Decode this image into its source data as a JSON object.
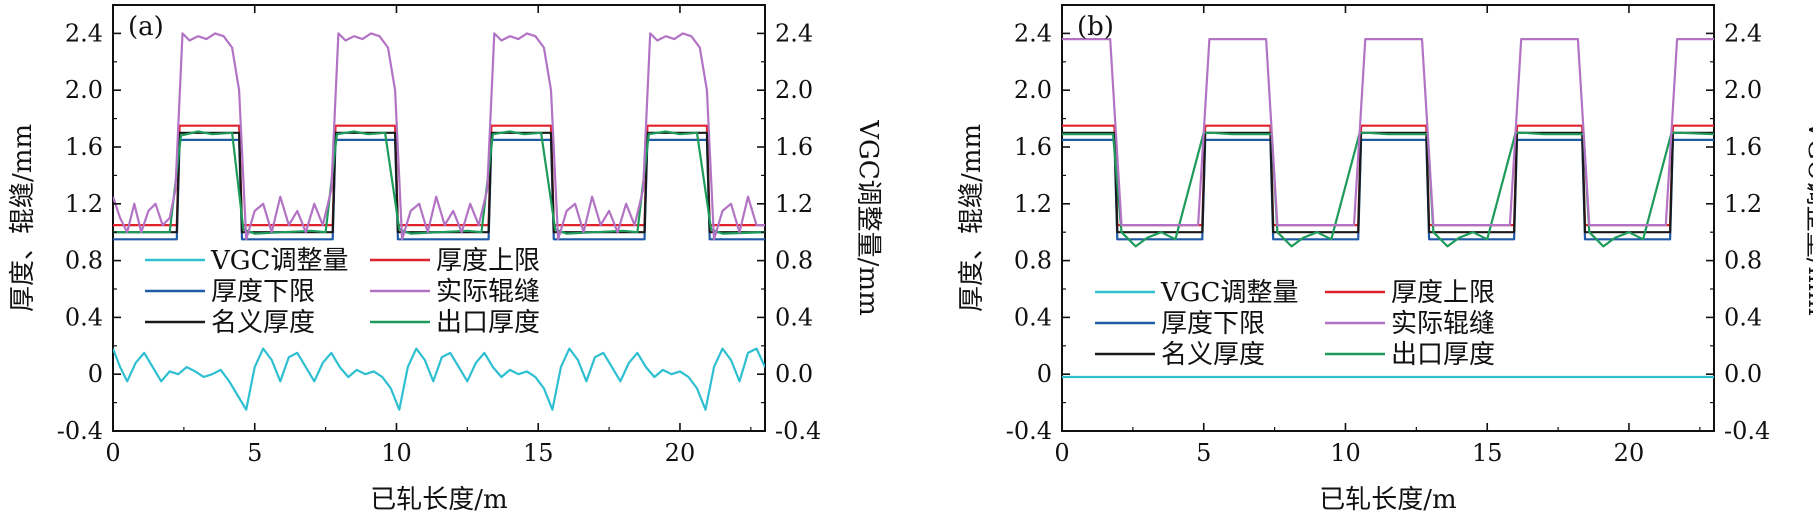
{
  "figure": {
    "series_names": [
      "VGC调整量",
      "厚度上限",
      "厚度下限",
      "实际辊缝",
      "名义厚度",
      "出口厚度"
    ],
    "series_colors": {
      "vgc": "#2ebfd1",
      "upper": "#e0212a",
      "lower": "#1f5aa6",
      "gap": "#b373c4",
      "nominal": "#1a1a1a",
      "exit": "#1e9a5a"
    }
  },
  "chart_data": [
    {
      "type": "line",
      "panel_label": "(a)",
      "xlabel": "已轧长度/m",
      "ylabel_left": "厚度、辊缝/mm",
      "ylabel_right": "VGC调整量/mm",
      "xlim": [
        0,
        23
      ],
      "ylim": [
        -0.4,
        2.6
      ],
      "x_ticks": [
        "0",
        "5",
        "10",
        "15",
        "20"
      ],
      "y_ticks_left": [
        "-0.4",
        "0",
        "0.4",
        "0.8",
        "1.2",
        "1.6",
        "2.0",
        "2.4"
      ],
      "y_ticks_right": [
        "-0.4",
        "0.0",
        "0.4",
        "0.8",
        "1.2",
        "1.6",
        "2.0",
        "2.4"
      ],
      "grid": false,
      "legend_position": "center-left",
      "series": [
        {
          "name": "厚度上限",
          "key": "upper",
          "x": [
            0,
            2.25,
            2.35,
            4.45,
            4.55,
            7.75,
            7.85,
            9.95,
            10.05,
            13.25,
            13.35,
            15.45,
            15.55,
            18.75,
            18.85,
            20.95,
            21.05,
            23
          ],
          "y": [
            1.05,
            1.05,
            1.75,
            1.75,
            1.05,
            1.05,
            1.75,
            1.75,
            1.05,
            1.05,
            1.75,
            1.75,
            1.05,
            1.05,
            1.75,
            1.75,
            1.05,
            1.05
          ]
        },
        {
          "name": "厚度下限",
          "key": "lower",
          "x": [
            0,
            2.25,
            2.35,
            4.45,
            4.55,
            7.75,
            7.85,
            9.95,
            10.05,
            13.25,
            13.35,
            15.45,
            15.55,
            18.75,
            18.85,
            20.95,
            21.05,
            23
          ],
          "y": [
            0.95,
            0.95,
            1.65,
            1.65,
            0.95,
            0.95,
            1.65,
            1.65,
            0.95,
            0.95,
            1.65,
            1.65,
            0.95,
            0.95,
            1.65,
            1.65,
            0.95,
            0.95
          ]
        },
        {
          "name": "名义厚度",
          "key": "nominal",
          "x": [
            0,
            2.25,
            2.35,
            4.45,
            4.55,
            7.75,
            7.85,
            9.95,
            10.05,
            13.25,
            13.35,
            15.45,
            15.55,
            18.75,
            18.85,
            20.95,
            21.05,
            23
          ],
          "y": [
            1.0,
            1.0,
            1.7,
            1.7,
            1.0,
            1.0,
            1.7,
            1.7,
            1.0,
            1.0,
            1.7,
            1.7,
            1.0,
            1.0,
            1.7,
            1.7,
            1.0,
            1.0
          ]
        },
        {
          "name": "出口厚度",
          "key": "exit",
          "x": [
            0,
            2.0,
            2.4,
            3.0,
            3.5,
            4.2,
            4.6,
            5.0,
            6.0,
            7.0,
            7.5,
            7.9,
            8.5,
            9.0,
            9.6,
            10.1,
            10.5,
            11.5,
            12.5,
            13.0,
            13.4,
            14.0,
            14.5,
            15.1,
            15.6,
            16.0,
            17.0,
            18.0,
            18.5,
            18.9,
            19.5,
            20.0,
            20.6,
            21.1,
            21.5,
            23
          ],
          "y": [
            1.0,
            1.0,
            1.68,
            1.71,
            1.69,
            1.7,
            1.02,
            0.99,
            1.0,
            1.01,
            1.0,
            1.69,
            1.71,
            1.69,
            1.7,
            1.02,
            0.99,
            1.0,
            1.01,
            1.0,
            1.69,
            1.71,
            1.69,
            1.7,
            1.02,
            0.99,
            1.0,
            1.01,
            1.0,
            1.69,
            1.71,
            1.69,
            1.7,
            1.02,
            0.99,
            1.0
          ]
        },
        {
          "name": "实际辊缝",
          "key": "gap",
          "x": [
            0,
            0.25,
            0.5,
            0.75,
            1.0,
            1.25,
            1.5,
            1.75,
            2.0,
            2.2,
            2.45,
            2.7,
            3.0,
            3.3,
            3.6,
            3.9,
            4.2,
            4.45,
            4.7,
            5.0,
            5.3,
            5.6,
            5.9,
            6.2,
            6.5,
            6.8,
            7.1,
            7.4,
            7.7,
            7.95,
            8.2,
            8.5,
            8.8,
            9.1,
            9.4,
            9.7,
            9.95,
            10.2,
            10.5,
            10.8,
            11.1,
            11.4,
            11.7,
            12.0,
            12.3,
            12.6,
            12.9,
            13.2,
            13.45,
            13.7,
            14.0,
            14.3,
            14.6,
            14.9,
            15.2,
            15.45,
            15.7,
            16.0,
            16.3,
            16.6,
            16.9,
            17.2,
            17.5,
            17.8,
            18.1,
            18.4,
            18.7,
            18.95,
            19.2,
            19.5,
            19.8,
            20.1,
            20.4,
            20.7,
            20.95,
            21.2,
            21.5,
            21.8,
            22.1,
            22.4,
            22.7,
            23
          ],
          "y": [
            1.25,
            1.1,
            1.0,
            1.2,
            1.0,
            1.15,
            1.2,
            1.05,
            1.1,
            1.3,
            2.4,
            2.35,
            2.38,
            2.36,
            2.4,
            2.38,
            2.3,
            2.0,
            0.95,
            1.15,
            1.2,
            1.0,
            1.25,
            1.05,
            1.15,
            1.0,
            1.2,
            1.05,
            1.3,
            2.4,
            2.35,
            2.38,
            2.36,
            2.4,
            2.38,
            2.3,
            2.0,
            0.95,
            1.15,
            1.2,
            1.0,
            1.25,
            1.05,
            1.15,
            1.0,
            1.2,
            1.05,
            1.3,
            2.4,
            2.35,
            2.38,
            2.36,
            2.4,
            2.38,
            2.3,
            2.0,
            0.95,
            1.15,
            1.2,
            1.0,
            1.25,
            1.05,
            1.15,
            1.0,
            1.2,
            1.05,
            1.3,
            2.4,
            2.35,
            2.38,
            2.36,
            2.4,
            2.38,
            2.3,
            2.0,
            0.95,
            1.15,
            1.2,
            1.0,
            1.25,
            1.05,
            1.05
          ]
        },
        {
          "name": "VGC调整量",
          "key": "vgc",
          "x": [
            0,
            0.25,
            0.5,
            0.8,
            1.1,
            1.4,
            1.7,
            2.0,
            2.3,
            2.6,
            2.9,
            3.2,
            3.5,
            3.8,
            4.1,
            4.4,
            4.7,
            5.0,
            5.3,
            5.6,
            5.9,
            6.2,
            6.5,
            6.8,
            7.1,
            7.4,
            7.7,
            8.0,
            8.3,
            8.6,
            8.9,
            9.2,
            9.5,
            9.8,
            10.1,
            10.4,
            10.7,
            11.0,
            11.3,
            11.6,
            11.9,
            12.2,
            12.5,
            12.8,
            13.1,
            13.4,
            13.7,
            14.0,
            14.3,
            14.6,
            14.9,
            15.2,
            15.5,
            15.8,
            16.1,
            16.4,
            16.7,
            17.0,
            17.3,
            17.6,
            17.9,
            18.2,
            18.5,
            18.8,
            19.1,
            19.4,
            19.7,
            20.0,
            20.3,
            20.6,
            20.9,
            21.2,
            21.5,
            21.8,
            22.1,
            22.4,
            22.7,
            23
          ],
          "y": [
            0.18,
            0.05,
            -0.05,
            0.08,
            0.15,
            0.05,
            -0.05,
            0.02,
            0.0,
            0.05,
            0.02,
            -0.02,
            0.0,
            0.03,
            -0.05,
            -0.15,
            -0.25,
            0.05,
            0.18,
            0.1,
            -0.05,
            0.12,
            0.15,
            0.05,
            -0.05,
            0.08,
            0.15,
            0.05,
            -0.02,
            0.03,
            0.0,
            0.02,
            -0.02,
            -0.1,
            -0.25,
            0.05,
            0.18,
            0.1,
            -0.05,
            0.12,
            0.15,
            0.05,
            -0.05,
            0.08,
            0.15,
            0.05,
            -0.02,
            0.03,
            0.0,
            0.02,
            -0.02,
            -0.1,
            -0.25,
            0.05,
            0.18,
            0.1,
            -0.05,
            0.12,
            0.15,
            0.05,
            -0.05,
            0.08,
            0.15,
            0.05,
            -0.02,
            0.03,
            0.0,
            0.02,
            -0.02,
            -0.1,
            -0.25,
            0.05,
            0.18,
            0.1,
            -0.05,
            0.15,
            0.18,
            0.05
          ]
        }
      ]
    },
    {
      "type": "line",
      "panel_label": "(b)",
      "xlabel": "已轧长度/m",
      "ylabel_left": "厚度、辊缝/mm",
      "ylabel_right": "VGC调整量/mm",
      "xlim": [
        0,
        23
      ],
      "ylim": [
        -0.4,
        2.6
      ],
      "x_ticks": [
        "0",
        "5",
        "10",
        "15",
        "20"
      ],
      "y_ticks_left": [
        "-0.4",
        "0",
        "0.4",
        "0.8",
        "1.2",
        "1.6",
        "2.0",
        "2.4"
      ],
      "y_ticks_right": [
        "-0.4",
        "0.0",
        "0.4",
        "0.8",
        "1.2",
        "1.6",
        "2.0",
        "2.4"
      ],
      "grid": false,
      "legend_position": "bottom-center",
      "series": [
        {
          "name": "厚度上限",
          "key": "upper",
          "x": [
            0,
            1.85,
            1.95,
            4.95,
            5.05,
            7.35,
            7.45,
            10.45,
            10.55,
            12.85,
            12.95,
            15.95,
            16.05,
            18.35,
            18.45,
            21.45,
            21.55,
            23
          ],
          "y": [
            1.75,
            1.75,
            1.05,
            1.05,
            1.75,
            1.75,
            1.05,
            1.05,
            1.75,
            1.75,
            1.05,
            1.05,
            1.75,
            1.75,
            1.05,
            1.05,
            1.75,
            1.75
          ]
        },
        {
          "name": "厚度下限",
          "key": "lower",
          "x": [
            0,
            1.85,
            1.95,
            4.95,
            5.05,
            7.35,
            7.45,
            10.45,
            10.55,
            12.85,
            12.95,
            15.95,
            16.05,
            18.35,
            18.45,
            21.45,
            21.55,
            23
          ],
          "y": [
            1.65,
            1.65,
            0.95,
            0.95,
            1.65,
            1.65,
            0.95,
            0.95,
            1.65,
            1.65,
            0.95,
            0.95,
            1.65,
            1.65,
            0.95,
            0.95,
            1.65,
            1.65
          ]
        },
        {
          "name": "名义厚度",
          "key": "nominal",
          "x": [
            0,
            1.85,
            1.95,
            4.95,
            5.05,
            7.35,
            7.45,
            10.45,
            10.55,
            12.85,
            12.95,
            15.95,
            16.05,
            18.35,
            18.45,
            21.45,
            21.55,
            23
          ],
          "y": [
            1.7,
            1.7,
            1.0,
            1.0,
            1.7,
            1.7,
            1.0,
            1.0,
            1.7,
            1.7,
            1.0,
            1.0,
            1.7,
            1.7,
            1.0,
            1.0,
            1.7,
            1.7
          ]
        },
        {
          "name": "出口厚度",
          "key": "exit",
          "x": [
            0,
            1.8,
            2.1,
            2.6,
            3.0,
            3.5,
            4.0,
            5.0,
            5.3,
            6.0,
            7.0,
            7.4,
            7.6,
            8.1,
            8.5,
            9.0,
            9.5,
            10.5,
            10.8,
            11.5,
            12.5,
            12.9,
            13.1,
            13.6,
            14.0,
            14.5,
            15.0,
            16.0,
            16.3,
            17.0,
            18.0,
            18.4,
            18.6,
            19.1,
            19.5,
            20.0,
            20.5,
            21.5,
            21.8,
            23
          ],
          "y": [
            1.69,
            1.69,
            1.0,
            0.9,
            0.96,
            1.0,
            0.95,
            1.7,
            1.7,
            1.69,
            1.69,
            1.69,
            1.0,
            0.9,
            0.96,
            1.0,
            0.95,
            1.7,
            1.7,
            1.69,
            1.69,
            1.69,
            1.0,
            0.9,
            0.96,
            1.0,
            0.95,
            1.7,
            1.7,
            1.69,
            1.69,
            1.69,
            1.0,
            0.9,
            0.96,
            1.0,
            0.95,
            1.7,
            1.7,
            1.69
          ]
        },
        {
          "name": "实际辊缝",
          "key": "gap",
          "x": [
            0,
            1.7,
            2.1,
            4.8,
            5.2,
            7.2,
            7.6,
            10.3,
            10.7,
            12.7,
            13.1,
            15.8,
            16.2,
            18.2,
            18.6,
            21.3,
            21.7,
            23
          ],
          "y": [
            2.36,
            2.36,
            1.05,
            1.05,
            2.36,
            2.36,
            1.05,
            1.05,
            2.36,
            2.36,
            1.05,
            1.05,
            2.36,
            2.36,
            1.05,
            1.05,
            2.36,
            2.36
          ]
        },
        {
          "name": "VGC调整量",
          "key": "vgc",
          "x": [
            0,
            23
          ],
          "y": [
            -0.02,
            -0.02
          ]
        }
      ]
    }
  ]
}
